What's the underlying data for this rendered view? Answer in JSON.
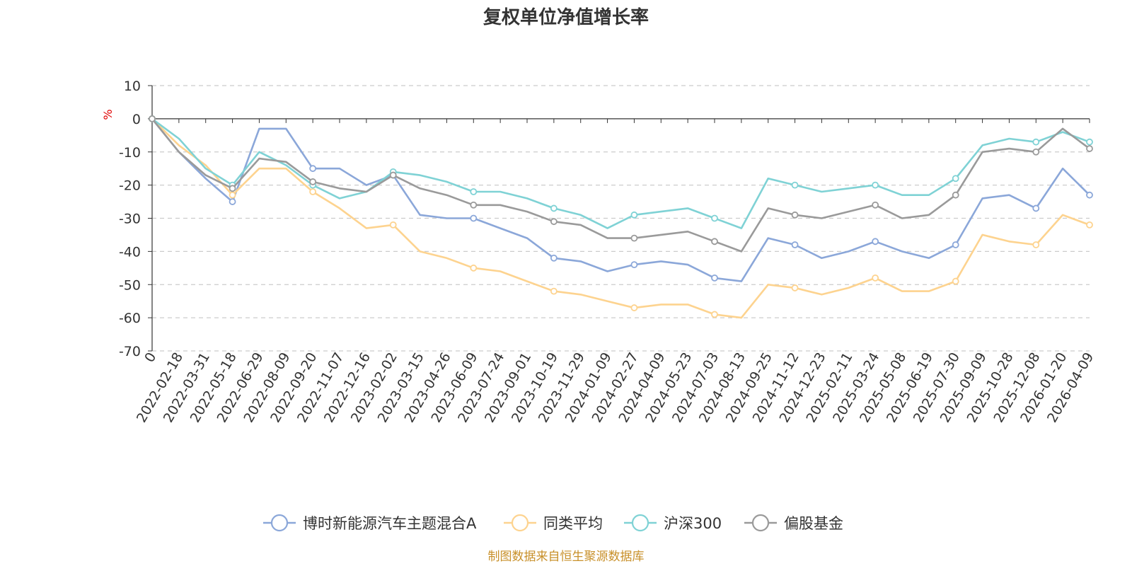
{
  "chart_data": {
    "type": "line",
    "title": "复权单位净值增长率",
    "ylabel": "%",
    "ylim": [
      -70,
      10
    ],
    "yticks": [
      10,
      0,
      -10,
      -20,
      -30,
      -40,
      -50,
      -60,
      -70
    ],
    "grid": true,
    "legend_position": "bottom",
    "x_start_label": "0",
    "x": [
      "2022-02-18",
      "2022-03-31",
      "2022-05-18",
      "2022-06-29",
      "2022-08-09",
      "2022-09-20",
      "2022-11-07",
      "2022-12-16",
      "2023-02-02",
      "2023-03-15",
      "2023-04-26",
      "2023-06-09",
      "2023-07-24",
      "2023-09-01",
      "2023-10-19",
      "2023-11-29",
      "2024-01-09",
      "2024-02-27",
      "2024-04-09",
      "2024-05-23",
      "2024-07-03",
      "2024-08-13",
      "2024-09-25",
      "2024-11-12",
      "2024-12-23",
      "2025-02-11",
      "2025-03-24",
      "2025-05-08",
      "2025-06-19",
      "2025-07-30",
      "2025-09-09",
      "2025-10-28",
      "2025-12-08",
      "2026-01-20",
      "2026-04-09"
    ],
    "series": [
      {
        "name": "博时新能源汽车主题混合A",
        "color": "#8ba7d9",
        "values": [
          -10,
          -18,
          -25,
          -3,
          -3,
          -15,
          -15,
          -20,
          -17,
          -29,
          -30,
          -30,
          -33,
          -36,
          -42,
          -43,
          -46,
          -44,
          -43,
          -44,
          -48,
          -49,
          -36,
          -38,
          -42,
          -40,
          -37,
          -40,
          -42,
          -38,
          -24,
          -23,
          -27,
          -15,
          -23
        ]
      },
      {
        "name": "同类平均",
        "color": "#fdd38f",
        "values": [
          -8,
          -14,
          -23,
          -15,
          -15,
          -22,
          -27,
          -33,
          -32,
          -40,
          -42,
          -45,
          -46,
          -49,
          -52,
          -53,
          -55,
          -57,
          -56,
          -56,
          -59,
          -60,
          -50,
          -51,
          -53,
          -51,
          -48,
          -52,
          -52,
          -49,
          -35,
          -37,
          -38,
          -29,
          -32
        ]
      },
      {
        "name": "沪深300",
        "color": "#7fd2d5",
        "values": [
          -6,
          -15,
          -20,
          -10,
          -14,
          -20,
          -24,
          -22,
          -16,
          -17,
          -19,
          -22,
          -22,
          -24,
          -27,
          -29,
          -33,
          -29,
          -28,
          -27,
          -30,
          -33,
          -18,
          -20,
          -22,
          -21,
          -20,
          -23,
          -23,
          -18,
          -8,
          -6,
          -7,
          -4,
          -7
        ]
      },
      {
        "name": "偏股基金",
        "color": "#9a9a9a",
        "values": [
          -10,
          -17,
          -21,
          -12,
          -13,
          -19,
          -21,
          -22,
          -17,
          -21,
          -23,
          -26,
          -26,
          -28,
          -31,
          -32,
          -36,
          -36,
          -35,
          -34,
          -37,
          -40,
          -27,
          -29,
          -30,
          -28,
          -26,
          -30,
          -29,
          -23,
          -10,
          -9,
          -10,
          -3,
          -9
        ]
      }
    ]
  },
  "source_text": "制图数据来自恒生聚源数据库"
}
